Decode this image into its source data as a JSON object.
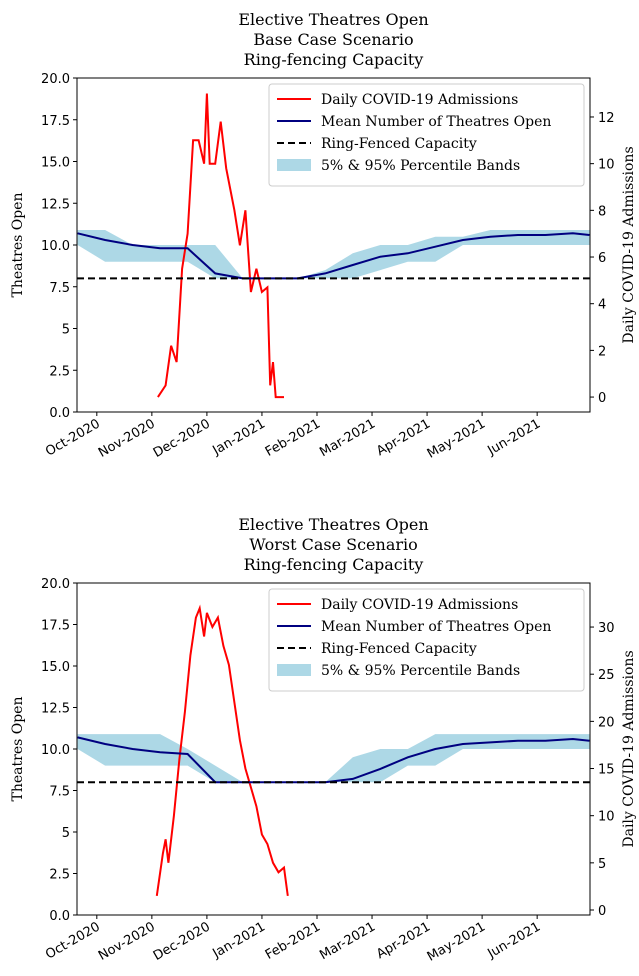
{
  "chart_data": [
    {
      "type": "line",
      "title": [
        "Elective Theatres Open",
        "Base Case Scenario",
        "Ring-fencing Capacity"
      ],
      "ylabel": "Theatres Open",
      "y2label": "Daily COVID-19 Admissions",
      "xlim": [
        -0.36,
        8.96
      ],
      "xticks": [
        {
          "value": 0,
          "label": "Oct-2020"
        },
        {
          "value": 1,
          "label": "Nov-2020"
        },
        {
          "value": 2,
          "label": "Dec-2020"
        },
        {
          "value": 3,
          "label": "Jan-2021"
        },
        {
          "value": 4,
          "label": "Feb-2021"
        },
        {
          "value": 5,
          "label": "Mar-2021"
        },
        {
          "value": 6,
          "label": "Apr-2021"
        },
        {
          "value": 7,
          "label": "May-2021"
        },
        {
          "value": 8,
          "label": "Jun-2021"
        }
      ],
      "ylim": [
        0,
        20
      ],
      "yticks": [
        {
          "value": 0,
          "label": "0.0"
        },
        2.5,
        5,
        {
          "value": 7.5,
          "label": "7.5"
        },
        {
          "value": 10,
          "label": "10.0"
        },
        12.5,
        {
          "value": 15,
          "label": "15.0"
        },
        17.5,
        {
          "value": 20,
          "label": "20.0"
        }
      ],
      "y2lim": [
        -0.64,
        13.67
      ],
      "y2ticks": [
        0,
        2,
        4,
        6,
        8,
        10,
        12
      ],
      "legend": "upper right",
      "series": [
        {
          "name": "Daily COVID-19 Admissions",
          "color": "#ff0000",
          "axis": "y2",
          "x": [
            1.11,
            1.25,
            1.35,
            1.45,
            1.55,
            1.65,
            1.75,
            1.85,
            1.95,
            2.0,
            2.05,
            2.15,
            2.25,
            2.35,
            2.5,
            2.6,
            2.7,
            2.8,
            2.9,
            3.0,
            3.1,
            3.15,
            3.2,
            3.25,
            3.4
          ],
          "values": [
            0,
            0.5,
            2.2,
            1.5,
            5.5,
            7,
            11,
            11,
            10,
            13,
            10,
            10,
            11.8,
            9.8,
            8,
            6.5,
            8,
            4.5,
            5.5,
            4.5,
            4.7,
            0.5,
            1.5,
            0,
            0
          ]
        },
        {
          "name": "Mean Number of Theatres Open",
          "color": "#000080",
          "x": [
            -0.35,
            0.15,
            0.65,
            1.15,
            1.65,
            2.15,
            2.65,
            3.15,
            3.65,
            4.15,
            4.65,
            5.15,
            5.65,
            6.15,
            6.65,
            7.15,
            7.65,
            8.15,
            8.65,
            8.95
          ],
          "values": [
            10.7,
            10.3,
            10.0,
            9.8,
            9.8,
            8.3,
            8.0,
            8.0,
            8.0,
            8.3,
            8.8,
            9.3,
            9.5,
            9.9,
            10.3,
            10.5,
            10.6,
            10.6,
            10.7,
            10.6
          ]
        },
        {
          "name": "Ring-Fenced Capacity",
          "color": "#000000",
          "style": "dashed",
          "value": 8
        },
        {
          "name": "5% & 95% Percentile Bands",
          "color": "#add8e6",
          "type": "band",
          "x": [
            -0.35,
            0.15,
            0.65,
            1.15,
            1.65,
            2.15,
            2.65,
            3.15,
            3.65,
            4.15,
            4.65,
            5.15,
            5.65,
            6.15,
            6.65,
            7.15,
            7.65,
            8.15,
            8.65,
            8.95
          ],
          "lower": [
            10.0,
            9.0,
            9.0,
            9.0,
            9.0,
            8.0,
            8.0,
            8.0,
            8.0,
            8.0,
            8.0,
            8.5,
            9.0,
            9.0,
            10.0,
            10.0,
            10.0,
            10.0,
            10.0,
            10.0
          ],
          "upper": [
            10.9,
            10.9,
            10.0,
            10.0,
            10.0,
            10.0,
            8.0,
            8.0,
            8.0,
            8.5,
            9.5,
            10.0,
            10.0,
            10.5,
            10.5,
            10.9,
            10.9,
            10.9,
            10.9,
            10.9
          ]
        }
      ]
    },
    {
      "type": "line",
      "title": [
        "Elective Theatres Open",
        "Worst Case Scenario",
        "Ring-fencing Capacity"
      ],
      "ylabel": "Theatres Open",
      "y2label": "Daily COVID-19 Admissions",
      "xlim": [
        -0.36,
        8.96
      ],
      "xticks": [
        {
          "value": 0,
          "label": "Oct-2020"
        },
        {
          "value": 1,
          "label": "Nov-2020"
        },
        {
          "value": 2,
          "label": "Dec-2020"
        },
        {
          "value": 3,
          "label": "Jan-2021"
        },
        {
          "value": 4,
          "label": "Feb-2021"
        },
        {
          "value": 5,
          "label": "Mar-2021"
        },
        {
          "value": 6,
          "label": "Apr-2021"
        },
        {
          "value": 7,
          "label": "May-2021"
        },
        {
          "value": 8,
          "label": "Jun-2021"
        }
      ],
      "ylim": [
        0,
        20
      ],
      "yticks": [
        {
          "value": 0,
          "label": "0.0"
        },
        2.5,
        5,
        {
          "value": 7.5,
          "label": "7.5"
        },
        {
          "value": 10,
          "label": "10.0"
        },
        12.5,
        {
          "value": 15,
          "label": "15.0"
        },
        17.5,
        {
          "value": 20,
          "label": "20.0"
        }
      ],
      "y2lim": [
        -0.53,
        34.67
      ],
      "y2ticks": [
        0,
        5,
        10,
        15,
        20,
        25,
        30
      ],
      "legend": "upper right",
      "series": [
        {
          "name": "Daily COVID-19 Admissions",
          "color": "#ff0000",
          "axis": "y2",
          "x": [
            1.09,
            1.2,
            1.25,
            1.3,
            1.4,
            1.5,
            1.6,
            1.7,
            1.8,
            1.87,
            1.95,
            2.0,
            2.1,
            2.2,
            2.3,
            2.4,
            2.5,
            2.6,
            2.7,
            2.8,
            2.9,
            3.0,
            3.1,
            3.2,
            3.3,
            3.4,
            3.47
          ],
          "values": [
            1.5,
            6,
            7.5,
            5,
            10,
            16,
            21,
            27,
            31,
            32,
            29,
            31.5,
            30,
            31,
            28,
            26,
            22,
            18,
            15,
            13,
            11,
            8,
            7,
            5,
            4,
            4.5,
            1.5
          ]
        },
        {
          "name": "Mean Number of Theatres Open",
          "color": "#000080",
          "x": [
            -0.35,
            0.15,
            0.65,
            1.15,
            1.65,
            2.15,
            2.65,
            3.15,
            3.65,
            4.15,
            4.65,
            5.15,
            5.65,
            6.15,
            6.65,
            7.15,
            7.65,
            8.15,
            8.65,
            8.95
          ],
          "values": [
            10.7,
            10.3,
            10.0,
            9.8,
            9.7,
            8.0,
            8.0,
            8.0,
            8.0,
            8.0,
            8.2,
            8.8,
            9.5,
            10.0,
            10.3,
            10.4,
            10.5,
            10.5,
            10.6,
            10.5
          ]
        },
        {
          "name": "Ring-Fenced Capacity",
          "color": "#000000",
          "style": "dashed",
          "value": 8
        },
        {
          "name": "5% & 95% Percentile Bands",
          "color": "#add8e6",
          "type": "band",
          "x": [
            -0.35,
            0.15,
            0.65,
            1.15,
            1.65,
            2.15,
            2.65,
            3.15,
            3.65,
            4.15,
            4.65,
            5.15,
            5.65,
            6.15,
            6.65,
            7.15,
            7.65,
            8.15,
            8.65,
            8.95
          ],
          "lower": [
            10.0,
            9.0,
            9.0,
            9.0,
            9.0,
            8.0,
            8.0,
            8.0,
            8.0,
            8.0,
            8.0,
            8.0,
            9.0,
            9.0,
            10.0,
            10.0,
            10.0,
            10.0,
            10.0,
            10.0
          ],
          "upper": [
            10.9,
            10.9,
            10.9,
            10.9,
            10.0,
            9.0,
            8.0,
            8.0,
            8.0,
            8.0,
            9.5,
            10.0,
            10.0,
            10.9,
            10.9,
            10.9,
            10.9,
            10.9,
            10.9,
            10.9
          ]
        }
      ]
    }
  ]
}
